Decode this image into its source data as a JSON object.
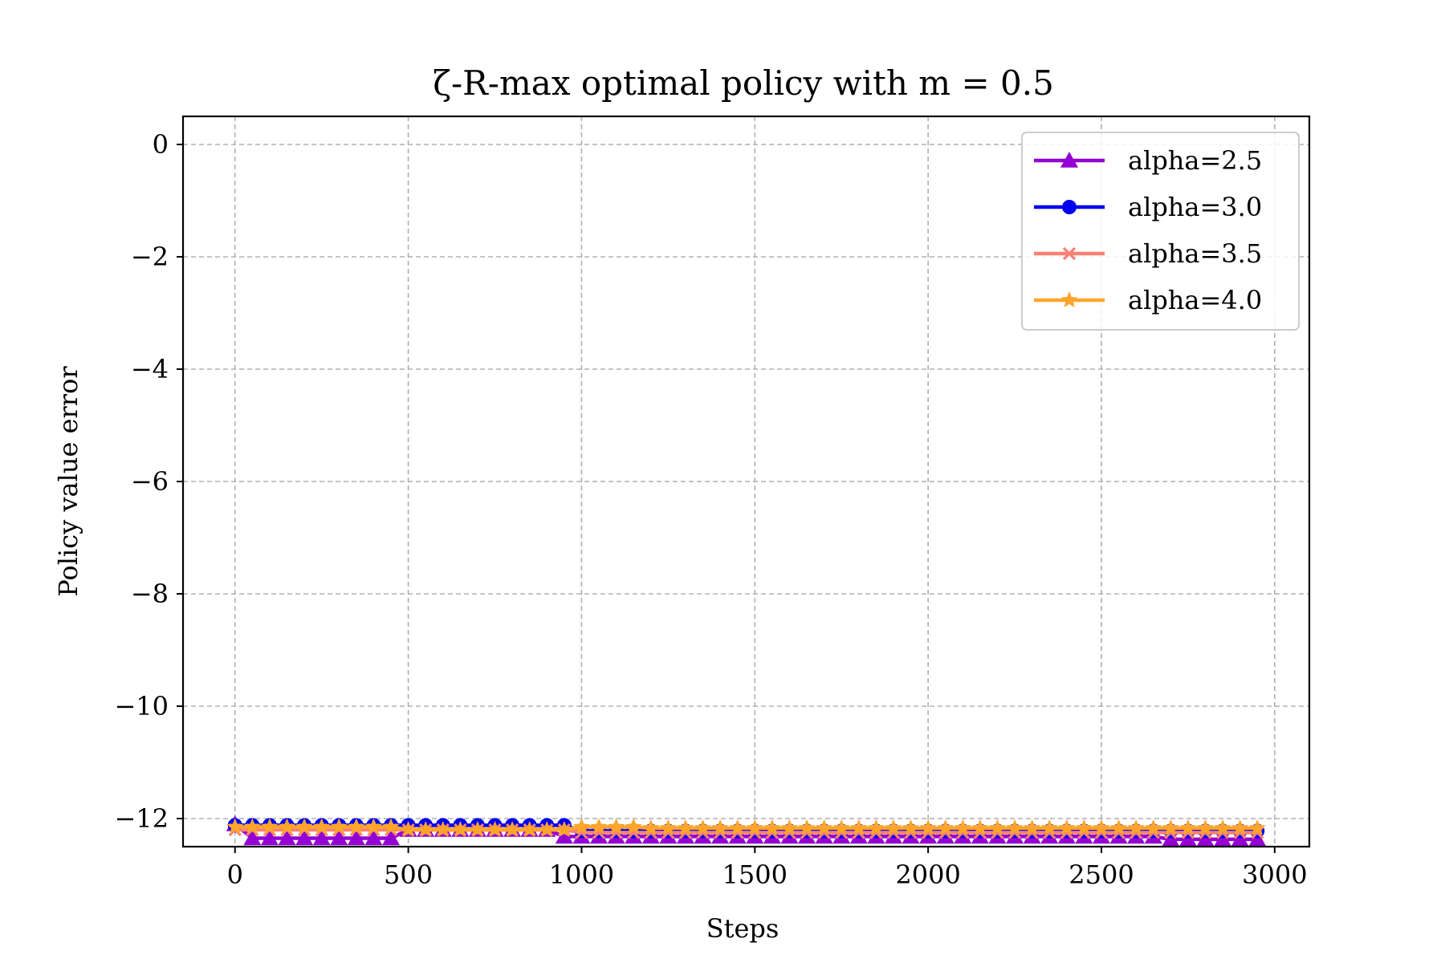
{
  "chart_data": {
    "type": "line",
    "title": "ζ-R-max optimal policy with m = 0.5",
    "xlabel": "Steps",
    "ylabel": "Policy value error",
    "xlim": [
      -150,
      3100
    ],
    "ylim": [
      -12.5,
      0.5
    ],
    "xticks": [
      0,
      500,
      1000,
      1500,
      2000,
      2500,
      3000
    ],
    "yticks": [
      0,
      -2,
      -4,
      -6,
      -8,
      -10,
      -12
    ],
    "xtick_labels": [
      "0",
      "500",
      "1000",
      "1500",
      "2000",
      "2500",
      "3000"
    ],
    "ytick_labels": [
      "0",
      "−2",
      "−4",
      "−6",
      "−8",
      "−10",
      "−12"
    ],
    "grid": true,
    "legend_position": "top-right",
    "x": {
      "start": 0,
      "step": 50,
      "count": 60
    },
    "series": [
      {
        "name": "alpha=2.5",
        "color": "#9400d3",
        "marker": "triangle",
        "segments": [
          {
            "x_from": 0,
            "x_to": 0,
            "y": -12.1
          },
          {
            "x_from": 50,
            "x_to": 450,
            "y": -12.35
          },
          {
            "x_from": 500,
            "x_to": 900,
            "y": -12.2
          },
          {
            "x_from": 950,
            "x_to": 2650,
            "y": -12.32
          },
          {
            "x_from": 2700,
            "x_to": 2950,
            "y": -12.37
          }
        ]
      },
      {
        "name": "alpha=3.0",
        "color": "#0000ee",
        "marker": "circle",
        "segments": [
          {
            "x_from": 0,
            "x_to": 950,
            "y": -12.12
          },
          {
            "x_from": 1000,
            "x_to": 2950,
            "y": -12.22
          }
        ]
      },
      {
        "name": "alpha=3.5",
        "color": "#fa8072",
        "marker": "x",
        "segments": [
          {
            "x_from": 0,
            "x_to": 950,
            "y": -12.2
          },
          {
            "x_from": 1000,
            "x_to": 2950,
            "y": -12.25
          }
        ]
      },
      {
        "name": "alpha=4.0",
        "color": "#ffa52c",
        "marker": "star",
        "segments": [
          {
            "x_from": 0,
            "x_to": 450,
            "y": -12.15
          },
          {
            "x_from": 500,
            "x_to": 950,
            "y": -12.2
          },
          {
            "x_from": 1000,
            "x_to": 1150,
            "y": -12.15
          },
          {
            "x_from": 1200,
            "x_to": 2950,
            "y": -12.17
          }
        ]
      }
    ]
  }
}
